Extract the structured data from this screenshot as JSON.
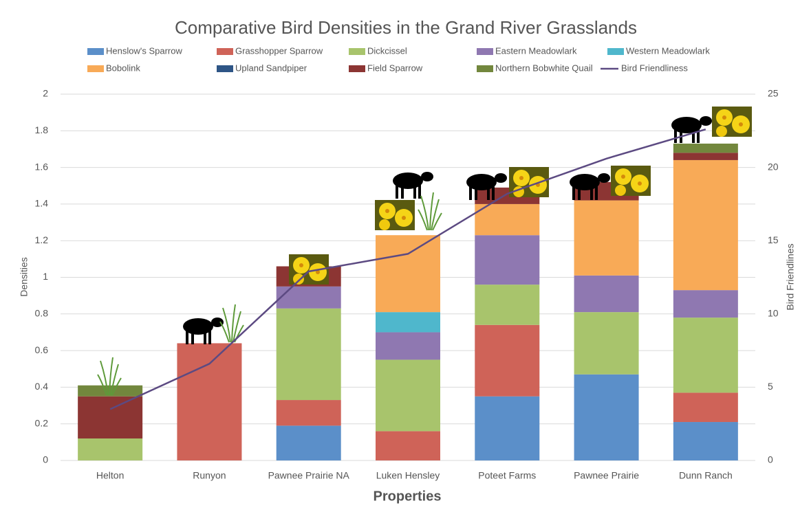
{
  "chart_data": {
    "type": "bar",
    "stacked": true,
    "title": "Comparative Bird Densities in the Grand River Grasslands",
    "x_label": "Properties",
    "y_label": "Densities",
    "y2_label": "Bird Friendlines",
    "categories": [
      "Helton",
      "Runyon",
      "Pawnee Prairie NA",
      "Luken Hensley",
      "Poteet Farms",
      "Pawnee Prairie",
      "Dunn Ranch"
    ],
    "series": [
      {
        "name": "Henslow's Sparrow",
        "color": "#5b8fc9",
        "values": [
          0,
          0,
          0.19,
          0,
          0.35,
          0.47,
          0.21
        ]
      },
      {
        "name": "Grasshopper Sparrow",
        "color": "#cf6358",
        "values": [
          0,
          0.64,
          0.14,
          0.16,
          0.39,
          0,
          0.16
        ]
      },
      {
        "name": "Dickcissel",
        "color": "#a8c46c",
        "values": [
          0.12,
          0,
          0.5,
          0.39,
          0.22,
          0.34,
          0.41
        ]
      },
      {
        "name": "Eastern Meadowlark",
        "color": "#8f78b1",
        "values": [
          0,
          0,
          0.12,
          0.15,
          0.27,
          0.2,
          0.15
        ]
      },
      {
        "name": "Western Meadowlark",
        "color": "#4fb7cc",
        "values": [
          0,
          0,
          0,
          0.11,
          0,
          0,
          0
        ]
      },
      {
        "name": "Bobolink",
        "color": "#f8aa57",
        "values": [
          0,
          0,
          0,
          0.42,
          0.17,
          0.41,
          0.71
        ]
      },
      {
        "name": "Upland Sandpiper",
        "color": "#2e5586",
        "values": [
          0,
          0,
          0,
          0,
          0,
          0,
          0
        ]
      },
      {
        "name": "Field Sparrow",
        "color": "#8c3533",
        "values": [
          0.23,
          0,
          0.11,
          0,
          0.09,
          0.1,
          0.04
        ]
      },
      {
        "name": "Northern Bobwhite Quail",
        "color": "#72873d",
        "values": [
          0.06,
          0,
          0,
          0,
          0,
          0,
          0.05
        ]
      },
      {
        "name": "Bird Friendliness",
        "color": "#5c4a82",
        "type": "line",
        "axis": "y2",
        "values": [
          3.5,
          6.6,
          12.9,
          14.1,
          18.2,
          20.6,
          22.6
        ]
      }
    ],
    "ylim": [
      0,
      2
    ],
    "yticks": [
      0,
      0.2,
      0.4,
      0.6,
      0.8,
      1,
      1.2,
      1.4,
      1.6,
      1.8,
      2
    ],
    "y2lim": [
      0,
      25
    ],
    "y2ticks": [
      0,
      5,
      10,
      15,
      20,
      25
    ],
    "grid": true
  }
}
